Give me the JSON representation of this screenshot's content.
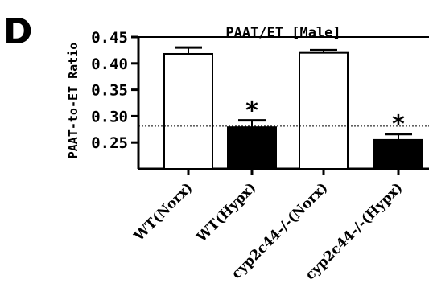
{
  "panel_label": "D",
  "chart_data": {
    "type": "bar",
    "title": "PAAT/ET [Male]",
    "ylabel": "PAAT-to-ET Ratio",
    "xlabel": "",
    "categories": [
      "WT(Norx)",
      "WT(Hypx)",
      "cyp2c44-/-(Norx)",
      "cyp2c44-/-(Hypx)"
    ],
    "values": [
      0.418,
      0.279,
      0.42,
      0.255
    ],
    "errors": [
      0.012,
      0.013,
      0.005,
      0.011
    ],
    "bar_fills": [
      "#ffffff",
      "#000000",
      "#ffffff",
      "#000000"
    ],
    "significance": [
      "",
      "*",
      "",
      "*"
    ],
    "ylim": [
      0.2,
      0.45
    ],
    "yticks": [
      0.25,
      0.3,
      0.35,
      0.4,
      0.45
    ],
    "ytick_labels": [
      "0.25",
      "0.30",
      "0.35",
      "0.40",
      "0.45"
    ],
    "reference_line": 0.281,
    "grid": false
  }
}
